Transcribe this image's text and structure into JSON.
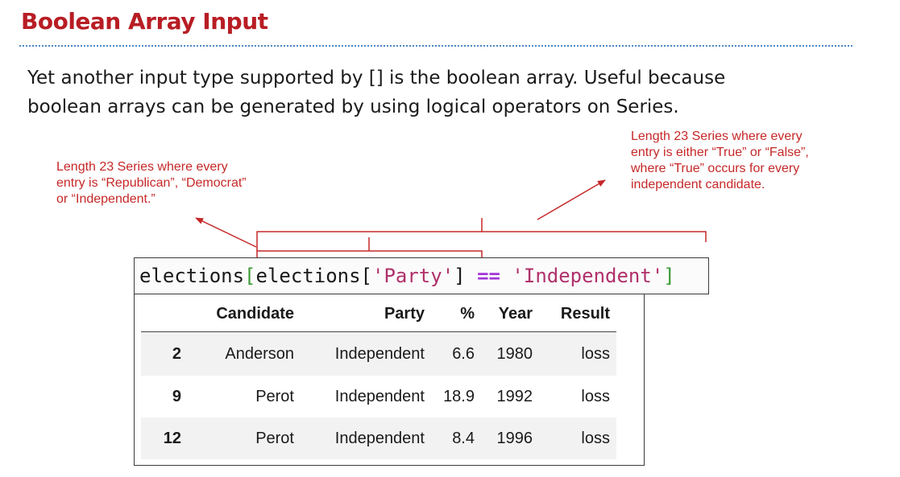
{
  "slide": {
    "title": "Boolean Array Input",
    "body_line1": "Yet another input type supported by [] is the boolean array. Useful because",
    "body_line2": "boolean arrays can be generated by using logical operators on Series."
  },
  "annotations": {
    "left": [
      "Length 23 Series where every",
      "entry is “Republican”, “Democrat”",
      "or “Independent.”"
    ],
    "right": [
      "Length 23 Series where every",
      "entry is either “True” or “False”,",
      "where “True” occurs for every",
      "independent candidate."
    ]
  },
  "code": {
    "t1": "elections",
    "t2": "[",
    "t3": "elections[",
    "t4": "'Party'",
    "t5": "]",
    "t6": " ",
    "t7": "==",
    "t8": " ",
    "t9": "'Independent'",
    "t10": "]"
  },
  "table": {
    "columns": [
      "",
      "Candidate",
      "Party",
      "%",
      "Year",
      "Result"
    ],
    "rows": [
      [
        "2",
        "Anderson",
        "Independent",
        "6.6",
        "1980",
        "loss"
      ],
      [
        "9",
        "Perot",
        "Independent",
        "18.9",
        "1992",
        "loss"
      ],
      [
        "12",
        "Perot",
        "Independent",
        "8.4",
        "1996",
        "loss"
      ]
    ]
  },
  "colors": {
    "title": "#b81d24",
    "annotation": "#c62828",
    "rule": "#4a86c5",
    "bracket": "#3c9a34",
    "string": "#b0306a",
    "operator": "#a335d8"
  }
}
